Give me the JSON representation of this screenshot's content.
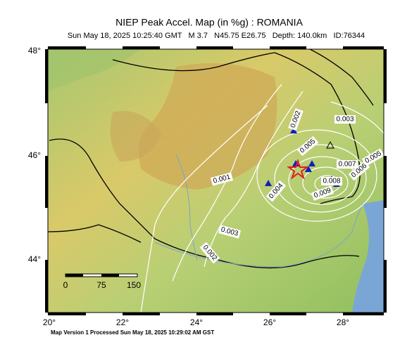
{
  "header": {
    "title": "NIEP Peak Accel. Map (in %g) : ROMANIA",
    "subtitle": "Sun May 18, 2025 10:25:40 GMT   M 3.7   N45.75 E26.75   Depth: 140.0km   ID:76344"
  },
  "axes": {
    "lat_labels": [
      "48°",
      "46°",
      "44°"
    ],
    "lon_labels": [
      "20°",
      "22°",
      "24°",
      "26°",
      "28°"
    ]
  },
  "scale_bar": {
    "labels": [
      "0",
      "75",
      "150"
    ]
  },
  "contours": {
    "labels": [
      "0.002",
      "0.003",
      "0.005",
      "0.007",
      "0.005",
      "0.001",
      "0.004",
      "0.008",
      "0.006",
      "0.009",
      "0.003",
      "0.002"
    ]
  },
  "footer": {
    "text": "Map Version 1 Processed Sun May 18, 2025 10:29:02 AM GST"
  }
}
